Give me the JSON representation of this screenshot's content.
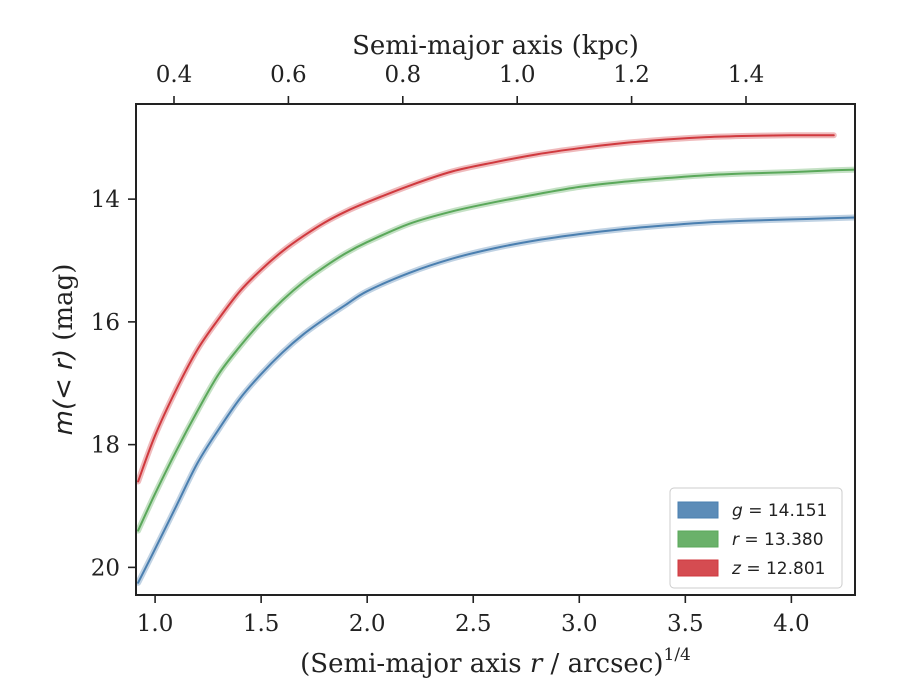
{
  "chart_data": {
    "type": "line",
    "xlabel": "(Semi-major axis r / arcsec)^1/4",
    "xlabel_parts": {
      "main": "(Semi-major axis ",
      "var": "r",
      "rest": " / arcsec)",
      "sup": "1/4"
    },
    "ylabel": "m(< r) (mag)",
    "ylabel_parts": {
      "math": "m(< r)",
      "rest": " (mag)"
    },
    "top_xlabel": "Semi-major axis (kpc)",
    "xlim": [
      0.91,
      4.3
    ],
    "ylim": [
      20.45,
      12.45
    ],
    "y_inverted": true,
    "x_ticks": [
      "1.0",
      "1.5",
      "2.0",
      "2.5",
      "3.0",
      "3.5",
      "4.0"
    ],
    "y_ticks": [
      "14",
      "16",
      "18",
      "20"
    ],
    "top_ticks": [
      "0.4",
      "0.6",
      "0.8",
      "1.0",
      "1.2",
      "1.4"
    ],
    "grid": false,
    "legend_position": "bottom-right",
    "series": [
      {
        "name": "g = 14.151",
        "legend_var": "g",
        "legend_value": "= 14.151",
        "color": "#4a7fb0",
        "x": [
          0.92,
          1.0,
          1.1,
          1.2,
          1.3,
          1.4,
          1.5,
          1.6,
          1.7,
          1.8,
          1.9,
          2.0,
          2.2,
          2.4,
          2.6,
          2.8,
          3.0,
          3.2,
          3.4,
          3.6,
          3.8,
          4.0,
          4.2,
          4.3
        ],
        "y": [
          20.25,
          19.7,
          19.0,
          18.3,
          17.75,
          17.25,
          16.85,
          16.5,
          16.2,
          15.95,
          15.72,
          15.5,
          15.2,
          14.97,
          14.8,
          14.67,
          14.57,
          14.49,
          14.43,
          14.38,
          14.35,
          14.33,
          14.31,
          14.3
        ]
      },
      {
        "name": "r = 13.380",
        "legend_var": "r",
        "legend_value": "= 13.380",
        "color": "#5aa85a",
        "x": [
          0.92,
          1.0,
          1.1,
          1.2,
          1.3,
          1.4,
          1.5,
          1.6,
          1.7,
          1.8,
          1.9,
          2.0,
          2.2,
          2.4,
          2.6,
          2.8,
          3.0,
          3.2,
          3.4,
          3.6,
          3.8,
          4.0,
          4.2,
          4.3
        ],
        "y": [
          19.4,
          18.8,
          18.1,
          17.45,
          16.85,
          16.4,
          16.0,
          15.65,
          15.35,
          15.1,
          14.88,
          14.7,
          14.4,
          14.2,
          14.05,
          13.92,
          13.8,
          13.72,
          13.66,
          13.61,
          13.58,
          13.56,
          13.53,
          13.52
        ]
      },
      {
        "name": "z = 12.801",
        "legend_var": "z",
        "legend_value": "= 12.801",
        "color": "#d0393e",
        "x": [
          0.92,
          1.0,
          1.1,
          1.2,
          1.3,
          1.4,
          1.5,
          1.6,
          1.7,
          1.8,
          1.9,
          2.0,
          2.2,
          2.4,
          2.6,
          2.8,
          3.0,
          3.2,
          3.4,
          3.6,
          3.8,
          4.0,
          4.1,
          4.2
        ],
        "y": [
          18.6,
          17.85,
          17.1,
          16.45,
          15.95,
          15.5,
          15.15,
          14.85,
          14.6,
          14.38,
          14.2,
          14.05,
          13.78,
          13.55,
          13.4,
          13.27,
          13.17,
          13.09,
          13.03,
          12.99,
          12.97,
          12.96,
          12.96,
          12.96
        ]
      }
    ]
  }
}
